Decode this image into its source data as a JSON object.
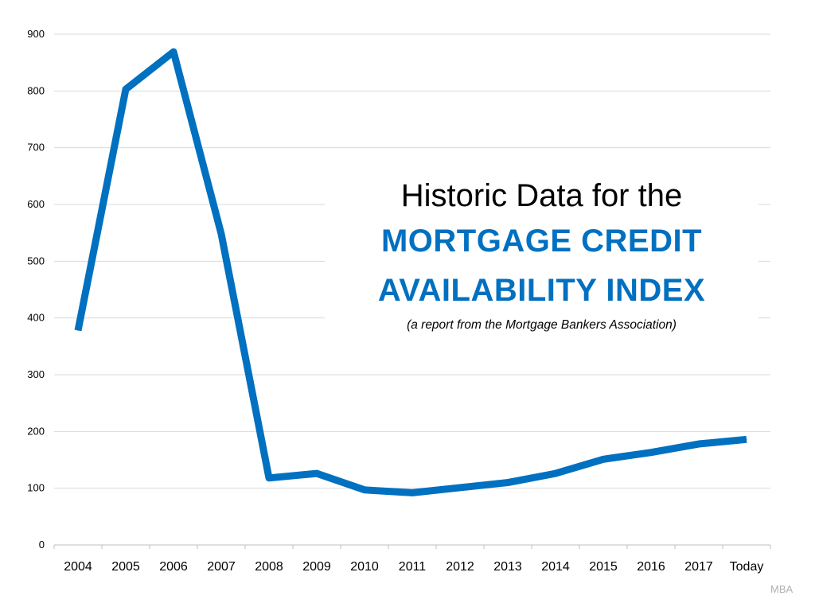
{
  "chart_data": {
    "type": "line",
    "title_line1": "Historic Data for the",
    "title_line2": "MORTGAGE CREDIT",
    "title_line3": "AVAILABILITY INDEX",
    "subtitle": "(a report from the Mortgage Bankers Association)",
    "source": "MBA",
    "xlabel": "",
    "ylabel": "",
    "categories": [
      "2004",
      "2005",
      "2006",
      "2007",
      "2008",
      "2009",
      "2010",
      "2011",
      "2012",
      "2013",
      "2014",
      "2015",
      "2016",
      "2017",
      "Today"
    ],
    "series": [
      {
        "values": [
          378,
          803,
          869,
          548,
          118,
          126,
          97,
          92,
          101,
          110,
          126,
          151,
          163,
          178,
          186
        ]
      }
    ],
    "ylim": [
      0,
      900
    ],
    "yticks": [
      0,
      100,
      200,
      300,
      400,
      500,
      600,
      700,
      800,
      900
    ],
    "grid": true,
    "legend": "none",
    "colors": {
      "line": "#0070c0",
      "title_accent": "#0070c0",
      "grid": "#d9d9d9",
      "axis": "#bfbfbf"
    }
  }
}
